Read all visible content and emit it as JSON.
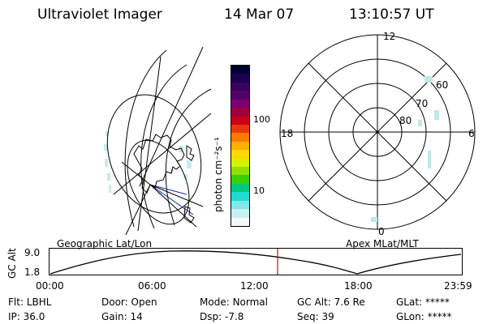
{
  "header": {
    "title": "Ultraviolet Imager",
    "date": "14 Mar 07",
    "time": "13:10:57 UT"
  },
  "colorbar": {
    "label": "photon cm⁻²s⁻¹",
    "ticks": [
      "100",
      "10"
    ],
    "colors": [
      "#000033",
      "#1a0050",
      "#3a005e",
      "#55006a",
      "#7a0070",
      "#a3003a",
      "#c8001a",
      "#e8380a",
      "#ff7a00",
      "#ffb000",
      "#ffd800",
      "#d8f000",
      "#90e000",
      "#3ad000",
      "#00c87a",
      "#20dcd0",
      "#7fe8e8",
      "#c8f0f0",
      "#f4f8f8"
    ]
  },
  "geo_map": {
    "label": "Geographic Lat/Lon"
  },
  "polar_plot": {
    "label": "Apex MLat/MLT",
    "mlt_labels": {
      "top": "12",
      "left": "18",
      "right": "6",
      "bottom": "0"
    },
    "lat_labels": [
      "60",
      "70",
      "80"
    ]
  },
  "altitude_strip": {
    "axis_label": "GC Alt",
    "y_ticks": [
      "9.0",
      "1.8"
    ],
    "x_ticks": [
      "00:00",
      "06:00",
      "12:00",
      "18:00",
      "23:59"
    ],
    "current_time_marker_color": "#e00000"
  },
  "info": {
    "flt_label": "Flt:",
    "flt_value": "LBHL",
    "ip_label": "IP:",
    "ip_value": "36.0",
    "door_label": "Door:",
    "door_value": "Open",
    "gain_label": "Gain:",
    "gain_value": "14",
    "mode_label": "Mode:",
    "mode_value": "Normal",
    "dsp_label": "Dsp:",
    "dsp_value": "-7.8",
    "gcalt_label": "GC Alt:",
    "gcalt_value": "7.6 Re",
    "seq_label": "Seq:",
    "seq_value": "39",
    "glat_label": "GLat:",
    "glat_value": "*****",
    "glon_label": "GLon:",
    "glon_value": "*****"
  }
}
